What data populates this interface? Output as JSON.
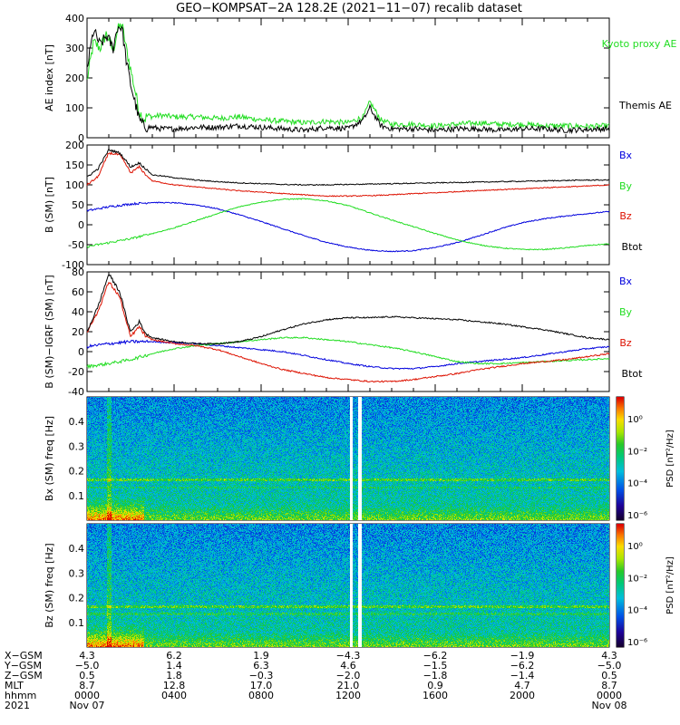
{
  "title": "GEO−KOMPSAT−2A 128.2E (2021−11−07) recalib dataset",
  "colors": {
    "kyoto": "#22dd22",
    "themis": "#000000",
    "bx": "#0000dd",
    "by": "#22dd22",
    "bz": "#dd1100",
    "btot": "#000000"
  },
  "chart_data": [
    {
      "type": "line",
      "id": "ae",
      "ylabel": "AE index [nT]",
      "ylim": [
        0,
        400
      ],
      "yticks": [
        0,
        100,
        200,
        300,
        400
      ],
      "xlim": [
        0,
        24
      ],
      "series": [
        {
          "name": "Kyoto proxy AE",
          "color": "#22dd22",
          "x": [
            0,
            0.3,
            0.6,
            0.9,
            1.2,
            1.4,
            1.6,
            1.8,
            2.0,
            2.2,
            2.4,
            2.6,
            2.8,
            3.0,
            3.4,
            4,
            5,
            6,
            7,
            8,
            9,
            10,
            11,
            12,
            12.7,
            13,
            13.5,
            14,
            15,
            16,
            17,
            18,
            19,
            20,
            21,
            22,
            23,
            24
          ],
          "values": [
            190,
            320,
            300,
            350,
            290,
            360,
            380,
            300,
            230,
            160,
            90,
            60,
            75,
            70,
            75,
            70,
            70,
            65,
            70,
            60,
            55,
            50,
            55,
            50,
            70,
            120,
            60,
            45,
            45,
            40,
            45,
            50,
            45,
            45,
            40,
            40,
            38,
            40
          ]
        },
        {
          "name": "Themis AE",
          "color": "#000000",
          "x": [
            0,
            0.3,
            0.6,
            0.9,
            1.2,
            1.4,
            1.6,
            1.8,
            2.0,
            2.2,
            2.4,
            2.6,
            2.8,
            3.0,
            3.4,
            4,
            5,
            6,
            7,
            8,
            9,
            10,
            11,
            12,
            12.7,
            13,
            13.5,
            14,
            15,
            16,
            17,
            18,
            19,
            20,
            21,
            22,
            23,
            24
          ],
          "values": [
            230,
            360,
            310,
            340,
            300,
            370,
            370,
            260,
            180,
            120,
            60,
            40,
            35,
            35,
            30,
            30,
            35,
            35,
            40,
            35,
            30,
            25,
            35,
            30,
            60,
            100,
            40,
            30,
            30,
            25,
            30,
            30,
            25,
            30,
            30,
            25,
            28,
            30
          ]
        }
      ]
    },
    {
      "type": "line",
      "id": "bsm",
      "ylabel": "B (SM) [nT]",
      "ylim": [
        -100,
        200
      ],
      "yticks": [
        -100,
        -50,
        0,
        50,
        100,
        150,
        200
      ],
      "xlim": [
        0,
        24
      ],
      "series": [
        {
          "name": "Bx",
          "color": "#0000dd",
          "x": [
            0,
            1,
            2,
            3,
            4,
            5,
            6,
            7,
            8,
            9,
            10,
            11,
            12,
            13,
            14,
            15,
            16,
            17,
            18,
            19,
            20,
            21,
            22,
            23,
            24
          ],
          "values": [
            35,
            45,
            52,
            56,
            55,
            50,
            40,
            25,
            8,
            -10,
            -28,
            -44,
            -56,
            -64,
            -67,
            -65,
            -57,
            -45,
            -28,
            -10,
            5,
            15,
            22,
            28,
            33
          ]
        },
        {
          "name": "By",
          "color": "#22dd22",
          "x": [
            0,
            1,
            2,
            3,
            4,
            5,
            6,
            7,
            8,
            9,
            10,
            11,
            12,
            13,
            14,
            15,
            16,
            17,
            18,
            19,
            20,
            21,
            22,
            23,
            24
          ],
          "values": [
            -55,
            -45,
            -35,
            -22,
            -8,
            10,
            28,
            45,
            57,
            64,
            65,
            60,
            48,
            30,
            12,
            -5,
            -22,
            -38,
            -50,
            -58,
            -62,
            -62,
            -58,
            -52,
            -48
          ]
        },
        {
          "name": "Bz",
          "color": "#dd1100",
          "x": [
            0,
            0.5,
            1,
            1.5,
            1.8,
            2,
            2.4,
            2.7,
            3,
            3.5,
            4,
            5,
            6,
            7,
            8,
            9,
            10,
            11,
            12,
            13,
            14,
            15,
            16,
            17,
            18,
            19,
            20,
            21,
            22,
            23,
            24
          ],
          "values": [
            100,
            120,
            180,
            175,
            150,
            130,
            145,
            125,
            110,
            105,
            100,
            95,
            90,
            85,
            82,
            78,
            75,
            72,
            72,
            73,
            75,
            78,
            80,
            83,
            86,
            88,
            90,
            93,
            95,
            97,
            100
          ]
        },
        {
          "name": "Btot",
          "color": "#000000",
          "x": [
            0,
            0.5,
            1,
            1.5,
            1.8,
            2,
            2.4,
            2.7,
            3,
            3.5,
            4,
            5,
            6,
            7,
            8,
            9,
            10,
            11,
            12,
            13,
            14,
            15,
            16,
            17,
            18,
            19,
            20,
            21,
            22,
            23,
            24
          ],
          "values": [
            120,
            140,
            188,
            180,
            160,
            145,
            155,
            140,
            125,
            122,
            118,
            112,
            108,
            105,
            103,
            101,
            100,
            100,
            101,
            102,
            103,
            104,
            105,
            106,
            107,
            108,
            109,
            110,
            111,
            112,
            112
          ]
        }
      ]
    },
    {
      "type": "line",
      "id": "bigrf",
      "ylabel": "B (SM)−IGRF (SM) [nT]",
      "ylim": [
        -40,
        80
      ],
      "yticks": [
        -40,
        -20,
        0,
        20,
        40,
        60,
        80
      ],
      "xlim": [
        0,
        24
      ],
      "series": [
        {
          "name": "Bx",
          "color": "#0000dd",
          "x": [
            0,
            1,
            2,
            3,
            4,
            5,
            6,
            7,
            8,
            9,
            10,
            11,
            12,
            13,
            14,
            15,
            16,
            17,
            18,
            19,
            20,
            21,
            22,
            23,
            24
          ],
          "values": [
            5,
            8,
            10,
            10,
            9,
            8,
            6,
            4,
            2,
            0,
            -4,
            -8,
            -12,
            -15,
            -17,
            -17,
            -15,
            -12,
            -10,
            -8,
            -6,
            -3,
            0,
            3,
            5
          ]
        },
        {
          "name": "By",
          "color": "#22dd22",
          "x": [
            0,
            1,
            2,
            3,
            4,
            5,
            6,
            7,
            8,
            9,
            10,
            11,
            12,
            13,
            14,
            15,
            16,
            17,
            18,
            19,
            20,
            21,
            22,
            23,
            24
          ],
          "values": [
            -15,
            -12,
            -8,
            -2,
            3,
            6,
            8,
            10,
            12,
            14,
            14,
            12,
            10,
            7,
            4,
            0,
            -5,
            -10,
            -12,
            -12,
            -11,
            -10,
            -9,
            -8,
            -7
          ]
        },
        {
          "name": "Bz",
          "color": "#dd1100",
          "x": [
            0,
            0.5,
            1,
            1.5,
            1.8,
            2,
            2.4,
            2.7,
            3,
            3.5,
            4,
            5,
            6,
            7,
            8,
            9,
            10,
            11,
            12,
            13,
            14,
            15,
            16,
            17,
            18,
            19,
            20,
            21,
            22,
            23,
            24
          ],
          "values": [
            20,
            40,
            70,
            55,
            30,
            15,
            25,
            15,
            12,
            10,
            8,
            6,
            2,
            -5,
            -12,
            -18,
            -22,
            -26,
            -28,
            -30,
            -30,
            -28,
            -25,
            -22,
            -18,
            -15,
            -12,
            -10,
            -8,
            -5,
            -2
          ]
        },
        {
          "name": "Btot",
          "color": "#000000",
          "x": [
            0,
            0.5,
            1,
            1.5,
            1.8,
            2,
            2.4,
            2.7,
            3,
            3.5,
            4,
            5,
            6,
            7,
            8,
            9,
            10,
            11,
            12,
            13,
            14,
            15,
            16,
            17,
            18,
            19,
            20,
            21,
            22,
            23,
            24
          ],
          "values": [
            20,
            45,
            78,
            60,
            35,
            20,
            30,
            18,
            14,
            12,
            10,
            8,
            8,
            10,
            15,
            22,
            28,
            32,
            34,
            34,
            35,
            34,
            33,
            32,
            30,
            28,
            25,
            22,
            18,
            14,
            12
          ]
        }
      ]
    },
    {
      "type": "heatmap",
      "id": "bxspec",
      "ylabel": "Bx (SM) freq [Hz]",
      "ylim": [
        0,
        0.5
      ],
      "yticks": [
        0.1,
        0.2,
        0.3,
        0.4
      ],
      "colorbar_label": "PSD [nT²/Hz]",
      "colorbar_ticks": [
        "10⁰",
        "10⁻²",
        "10⁻⁴",
        "10⁻⁶"
      ]
    },
    {
      "type": "heatmap",
      "id": "bzspec",
      "ylabel": "Bz (SM) freq [Hz]",
      "ylim": [
        0,
        0.5
      ],
      "yticks": [
        0.1,
        0.2,
        0.3,
        0.4
      ],
      "colorbar_label": "PSD [nT²/Hz]",
      "colorbar_ticks": [
        "10⁰",
        "10⁻²",
        "10⁻⁴",
        "10⁻⁶"
      ]
    }
  ],
  "legends": {
    "ae": [
      "Kyoto proxy AE",
      "Themis AE"
    ],
    "mag": [
      "Bx",
      "By",
      "Bz",
      "Btot"
    ]
  },
  "ephemeris": {
    "row_labels": [
      "X−GSM",
      "Y−GSM",
      "Z−GSM",
      "MLT",
      "hhmm",
      "2021"
    ],
    "columns": [
      [
        "4.3",
        "−5.0",
        "0.5",
        "8.7",
        "0000",
        "Nov 07"
      ],
      [
        "6.2",
        "1.4",
        "1.8",
        "12.8",
        "0400",
        ""
      ],
      [
        "1.9",
        "6.3",
        "−0.3",
        "17.0",
        "0800",
        ""
      ],
      [
        "−4.3",
        "4.6",
        "−2.0",
        "21.0",
        "1200",
        ""
      ],
      [
        "−6.2",
        "−1.5",
        "−1.8",
        "0.9",
        "1600",
        ""
      ],
      [
        "−1.9",
        "−6.2",
        "−1.4",
        "4.7",
        "2000",
        ""
      ],
      [
        "4.3",
        "−5.0",
        "0.5",
        "8.7",
        "0000",
        "Nov 08"
      ]
    ]
  }
}
